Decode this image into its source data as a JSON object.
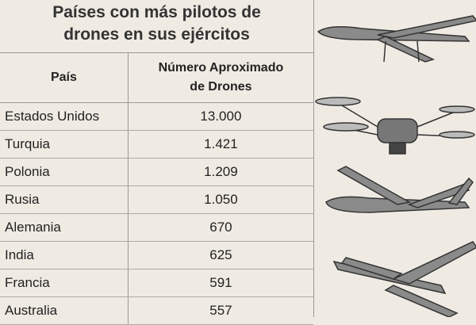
{
  "header": {
    "title_lines": [
      "Países con más pilotos de",
      "drones en sus ejércitos"
    ]
  },
  "table": {
    "columns": [
      "País",
      "Número Aproximado de Drones"
    ],
    "rows": [
      [
        "Estados Unidos",
        "13.000"
      ],
      [
        "Turquia",
        "1.421"
      ],
      [
        "Polonia",
        "1.209"
      ],
      [
        "Rusia",
        "1.050"
      ],
      [
        "Alemania",
        "670"
      ],
      [
        "India",
        "625"
      ],
      [
        "Francia",
        "591"
      ],
      [
        "Australia",
        "557"
      ]
    ]
  }
}
